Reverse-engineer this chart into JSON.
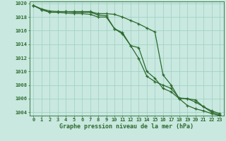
{
  "x": [
    0,
    1,
    2,
    3,
    4,
    5,
    6,
    7,
    8,
    9,
    10,
    11,
    12,
    13,
    14,
    15,
    16,
    17,
    18,
    19,
    20,
    21,
    22,
    23
  ],
  "line_upper": [
    1019.7,
    1019.2,
    1018.9,
    1018.8,
    1018.8,
    1018.8,
    1018.8,
    1018.8,
    1018.5,
    1018.5,
    1018.4,
    1018.0,
    1017.5,
    1017.0,
    1016.4,
    1015.8,
    1009.5,
    1008.0,
    1006.0,
    1006.0,
    1005.8,
    1004.8,
    1004.2,
    1003.8
  ],
  "line_mid": [
    1019.7,
    1019.1,
    1018.7,
    1018.7,
    1018.8,
    1018.7,
    1018.7,
    1018.7,
    1018.3,
    1018.2,
    1016.3,
    1015.7,
    1013.8,
    1011.9,
    1009.3,
    1008.5,
    1008.0,
    1007.5,
    1006.1,
    1006.0,
    1005.5,
    1004.8,
    1004.0,
    1003.6
  ],
  "line_lower": [
    1019.7,
    1019.1,
    1018.7,
    1018.7,
    1018.6,
    1018.5,
    1018.5,
    1018.4,
    1018.0,
    1018.0,
    1016.3,
    1015.5,
    1013.8,
    1013.5,
    1010.0,
    1009.0,
    1007.5,
    1007.0,
    1006.0,
    1005.0,
    1004.5,
    1004.2,
    1003.8,
    1003.5
  ],
  "ylim_min": 1003.5,
  "ylim_max": 1020.3,
  "xlim_min": -0.5,
  "xlim_max": 23.5,
  "yticks": [
    1004,
    1006,
    1008,
    1010,
    1012,
    1014,
    1016,
    1018,
    1020
  ],
  "xticks": [
    0,
    1,
    2,
    3,
    4,
    5,
    6,
    7,
    8,
    9,
    10,
    11,
    12,
    13,
    14,
    15,
    16,
    17,
    18,
    19,
    20,
    21,
    22,
    23
  ],
  "xlabel": "Graphe pression niveau de la mer (hPa)",
  "line_color": "#2d6a2d",
  "bg_color": "#c8e8e0",
  "grid_color": "#9ecfbf",
  "linewidth": 0.9,
  "markersize": 3.5,
  "markeredgewidth": 0.9,
  "xlabel_fontsize": 6.0,
  "tick_fontsize": 5.0,
  "label_color": "#2d6a2d",
  "bottom_bar_color": "#3a7a3a",
  "bottom_bar_height": 0.12
}
